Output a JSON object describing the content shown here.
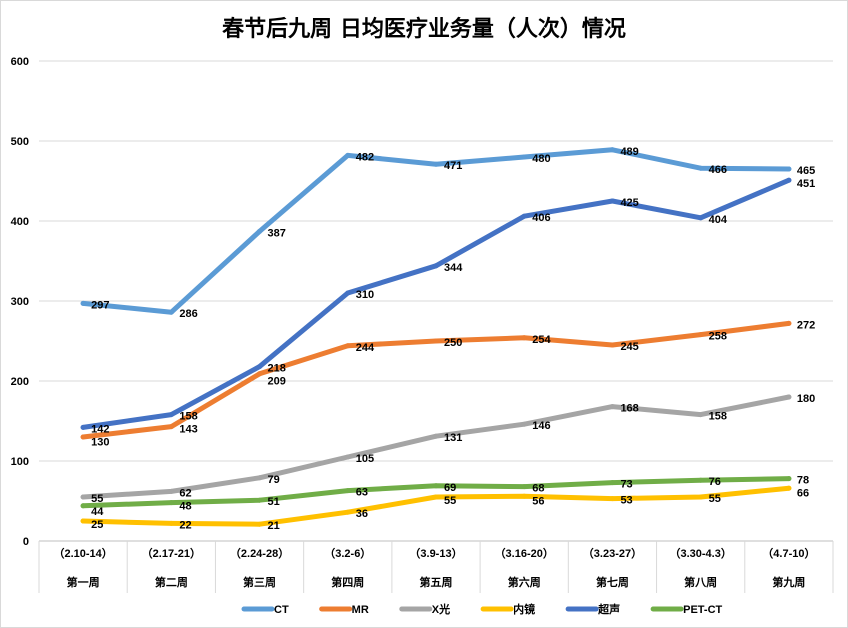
{
  "chart_data": {
    "type": "line",
    "title": "春节后九周 日均医疗业务量（人次）情况",
    "categories": [
      {
        "range": "（2.10-14）",
        "week": "第一周"
      },
      {
        "range": "（2.17-21）",
        "week": "第二周"
      },
      {
        "range": "（2.24-28）",
        "week": "第三周"
      },
      {
        "range": "（3.2-6）",
        "week": "第四周"
      },
      {
        "range": "（3.9-13）",
        "week": "第五周"
      },
      {
        "range": "（3.16-20）",
        "week": "第六周"
      },
      {
        "range": "（3.23-27）",
        "week": "第七周"
      },
      {
        "range": "（3.30-4.3）",
        "week": "第八周"
      },
      {
        "range": "（4.7-10）",
        "week": "第九周"
      }
    ],
    "ylim": [
      0,
      600
    ],
    "yticks": [
      0,
      100,
      200,
      300,
      400,
      500,
      600
    ],
    "grid": true,
    "legend": "bottom",
    "series": [
      {
        "name": "CT",
        "color": "#5b9bd5",
        "values": [
          297,
          286,
          387,
          482,
          471,
          480,
          489,
          466,
          465
        ]
      },
      {
        "name": "MR",
        "color": "#ed7d31",
        "values": [
          130,
          143,
          209,
          244,
          250,
          254,
          245,
          258,
          272
        ]
      },
      {
        "name": "X光",
        "color": "#a5a5a5",
        "values": [
          55,
          62,
          79,
          105,
          131,
          146,
          168,
          158,
          180
        ]
      },
      {
        "name": "内镜",
        "color": "#ffc000",
        "values": [
          25,
          22,
          21,
          36,
          55,
          56,
          53,
          55,
          66
        ]
      },
      {
        "name": "超声",
        "color": "#4472c4",
        "values": [
          142,
          158,
          218,
          310,
          344,
          406,
          425,
          404,
          451
        ]
      },
      {
        "name": "PET-CT",
        "color": "#70ad47",
        "values": [
          44,
          48,
          51,
          63,
          69,
          68,
          73,
          76,
          78
        ]
      }
    ]
  }
}
